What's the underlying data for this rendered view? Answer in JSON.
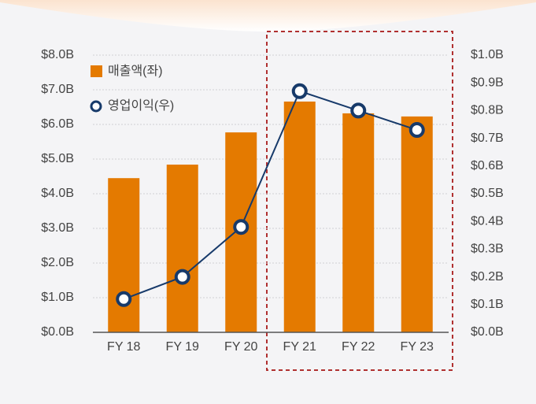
{
  "chart_data": {
    "type": "combo",
    "categories": [
      "FY 18",
      "FY 19",
      "FY 20",
      "FY 21",
      "FY 22",
      "FY 23"
    ],
    "series": [
      {
        "name": "매출액(좌)",
        "type": "bar",
        "color": "#e47a00",
        "values": [
          4.45,
          4.84,
          5.77,
          6.66,
          6.32,
          6.23
        ]
      },
      {
        "name": "영업이익(우)",
        "type": "line",
        "axis": "y2",
        "color": "#173a6a",
        "values": [
          0.12,
          0.2,
          0.38,
          0.87,
          0.8,
          0.73
        ]
      }
    ],
    "ylim": [
      0,
      8
    ],
    "yticks": [
      {
        "value": 0,
        "label": "$0.0B"
      },
      {
        "value": 1,
        "label": "$1.0B"
      },
      {
        "value": 2,
        "label": "$2.0B"
      },
      {
        "value": 3,
        "label": "$3.0B"
      },
      {
        "value": 4,
        "label": "$4.0B"
      },
      {
        "value": 5,
        "label": "$5.0B"
      },
      {
        "value": 6,
        "label": "$6.0B"
      },
      {
        "value": 7,
        "label": "$7.0B"
      },
      {
        "value": 8,
        "label": "$8.0B"
      }
    ],
    "y2lim": [
      0,
      1
    ],
    "y2ticks": [
      {
        "value": 0,
        "label": "$0.0B"
      },
      {
        "value": 0.1,
        "label": "$0.1B"
      },
      {
        "value": 0.2,
        "label": "$0.2B"
      },
      {
        "value": 0.3,
        "label": "$0.3B"
      },
      {
        "value": 0.4,
        "label": "$0.4B"
      },
      {
        "value": 0.5,
        "label": "$0.5B"
      },
      {
        "value": 0.6,
        "label": "$0.6B"
      },
      {
        "value": 0.7,
        "label": "$0.7B"
      },
      {
        "value": 0.8,
        "label": "$0.8B"
      },
      {
        "value": 0.9,
        "label": "$0.9B"
      },
      {
        "value": 1,
        "label": "$1.0B"
      }
    ],
    "grid": true,
    "legend": "top-left"
  }
}
